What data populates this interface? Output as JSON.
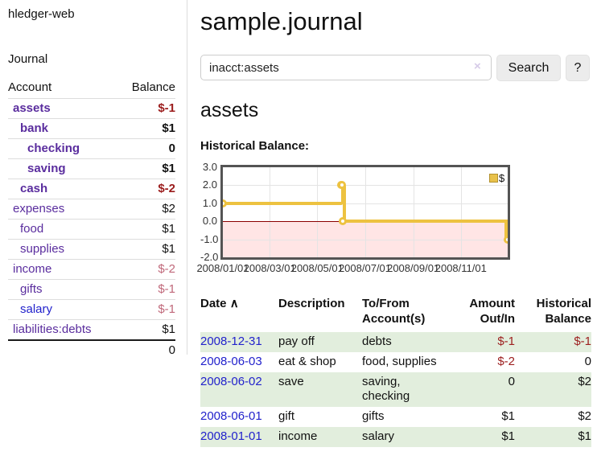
{
  "palette": {
    "link_purple": "#5a2d9e",
    "link_blue": "#2222cc",
    "neg_strong": "#9b1c1c",
    "neg_soft": "#c0687a",
    "neg_register": "#9d2020",
    "text": "#111111",
    "stripe_green": "#e2eedd",
    "chart_line": "#edc240",
    "chart_border": "#545454",
    "zero_line": "#8b0000"
  },
  "sidebar": {
    "app_title": "hledger-web",
    "nav": {
      "journal_label": "Journal"
    },
    "table": {
      "account_header": "Account",
      "balance_header": "Balance"
    },
    "accounts": [
      {
        "label": "assets",
        "depth": 1,
        "bold": true,
        "balance": "$-1",
        "balance_kind": "negstrong"
      },
      {
        "label": "bank",
        "depth": 2,
        "bold": true,
        "balance": "$1",
        "balance_kind": "pos"
      },
      {
        "label": "checking",
        "depth": 3,
        "bold": true,
        "balance": "0",
        "balance_kind": "pos"
      },
      {
        "label": "saving",
        "depth": 3,
        "bold": true,
        "balance": "$1",
        "balance_kind": "pos"
      },
      {
        "label": "cash",
        "depth": 2,
        "bold": true,
        "balance": "$-2",
        "balance_kind": "negstrong"
      },
      {
        "label": "expenses",
        "depth": 1,
        "bold": false,
        "balance": "$2",
        "balance_kind": "pos"
      },
      {
        "label": "food",
        "depth": 2,
        "bold": false,
        "balance": "$1",
        "balance_kind": "pos"
      },
      {
        "label": "supplies",
        "depth": 2,
        "bold": false,
        "balance": "$1",
        "balance_kind": "pos"
      },
      {
        "label": "income",
        "depth": 1,
        "bold": false,
        "balance": "$-2",
        "balance_kind": "negsoft"
      },
      {
        "label": "gifts",
        "depth": 2,
        "bold": false,
        "balance": "$-1",
        "balance_kind": "negsoft"
      },
      {
        "label": "salary",
        "depth": 2,
        "bold": false,
        "balance": "$-1",
        "balance_kind": "negsoft",
        "link_color": "blue"
      },
      {
        "label": "liabilities:debts",
        "depth": 1,
        "bold": false,
        "balance": "$1",
        "balance_kind": "pos"
      }
    ],
    "total": "0"
  },
  "main": {
    "title": "sample.journal",
    "search": {
      "value": "inacct:assets",
      "clear_icon": "×",
      "button_label": "Search",
      "help_label": "?"
    },
    "account_heading": "assets",
    "chart_label": "Historical Balance:"
  },
  "chart_data": {
    "type": "line",
    "title": "Historical Balance:",
    "step": true,
    "legend_position": "top-right",
    "grid": true,
    "negative_region_shaded": true,
    "x_range": [
      "2008-01-01",
      "2008-12-31"
    ],
    "ylim": [
      -2.0,
      3.0
    ],
    "y_ticks": [
      3.0,
      2.0,
      1.0,
      0.0,
      -1.0,
      -2.0
    ],
    "x_tick_labels": [
      "2008/01/01",
      "2008/03/01",
      "2008/05/01",
      "2008/07/01",
      "2008/09/01",
      "2008/11/01"
    ],
    "series": [
      {
        "name": "$",
        "color": "#edc240",
        "points": [
          {
            "date": "2008-01-01",
            "value": 1
          },
          {
            "date": "2008-06-01",
            "value": 2
          },
          {
            "date": "2008-06-02",
            "value": 2
          },
          {
            "date": "2008-06-03",
            "value": 0
          },
          {
            "date": "2008-12-31",
            "value": -1
          }
        ]
      }
    ]
  },
  "register": {
    "headers": {
      "date": "Date",
      "sort_indicator": "∧",
      "description": "Description",
      "accounts": "To/From Account(s)",
      "amount": "Amount Out/In",
      "balance": "Historical Balance"
    },
    "rows": [
      {
        "date": "2008-12-31",
        "description": "pay off",
        "accounts": "debts",
        "amount": "$-1",
        "amount_kind": "neg",
        "balance": "$-1",
        "balance_kind": "neg"
      },
      {
        "date": "2008-06-03",
        "description": "eat & shop",
        "accounts": "food, supplies",
        "amount": "$-2",
        "amount_kind": "neg",
        "balance": "0",
        "balance_kind": "pos"
      },
      {
        "date": "2008-06-02",
        "description": "save",
        "accounts": "saving, checking",
        "amount": "0",
        "amount_kind": "pos",
        "balance": "$2",
        "balance_kind": "pos"
      },
      {
        "date": "2008-06-01",
        "description": "gift",
        "accounts": "gifts",
        "amount": "$1",
        "amount_kind": "pos",
        "balance": "$2",
        "balance_kind": "pos"
      },
      {
        "date": "2008-01-01",
        "description": "income",
        "accounts": "salary",
        "amount": "$1",
        "amount_kind": "pos",
        "balance": "$1",
        "balance_kind": "pos"
      }
    ]
  }
}
